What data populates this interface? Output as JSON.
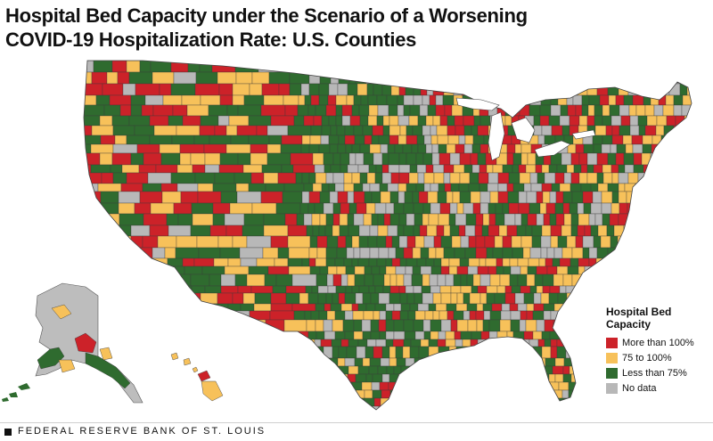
{
  "title": "Hospital Bed Capacity under the Scenario of a Worsening COVID-19 Hospitalization Rate: U.S. Counties",
  "legend": {
    "title": "Hospital Bed Capacity",
    "items": [
      {
        "label": "More than 100%",
        "color": "#cc2229"
      },
      {
        "label": "75 to 100%",
        "color": "#f7c15a"
      },
      {
        "label": "Less than 75%",
        "color": "#2f6b2f"
      },
      {
        "label": "No data",
        "color": "#b8b8b8"
      }
    ]
  },
  "footer": {
    "source": "FEDERAL RESERVE BANK OF ST. LOUIS"
  }
}
